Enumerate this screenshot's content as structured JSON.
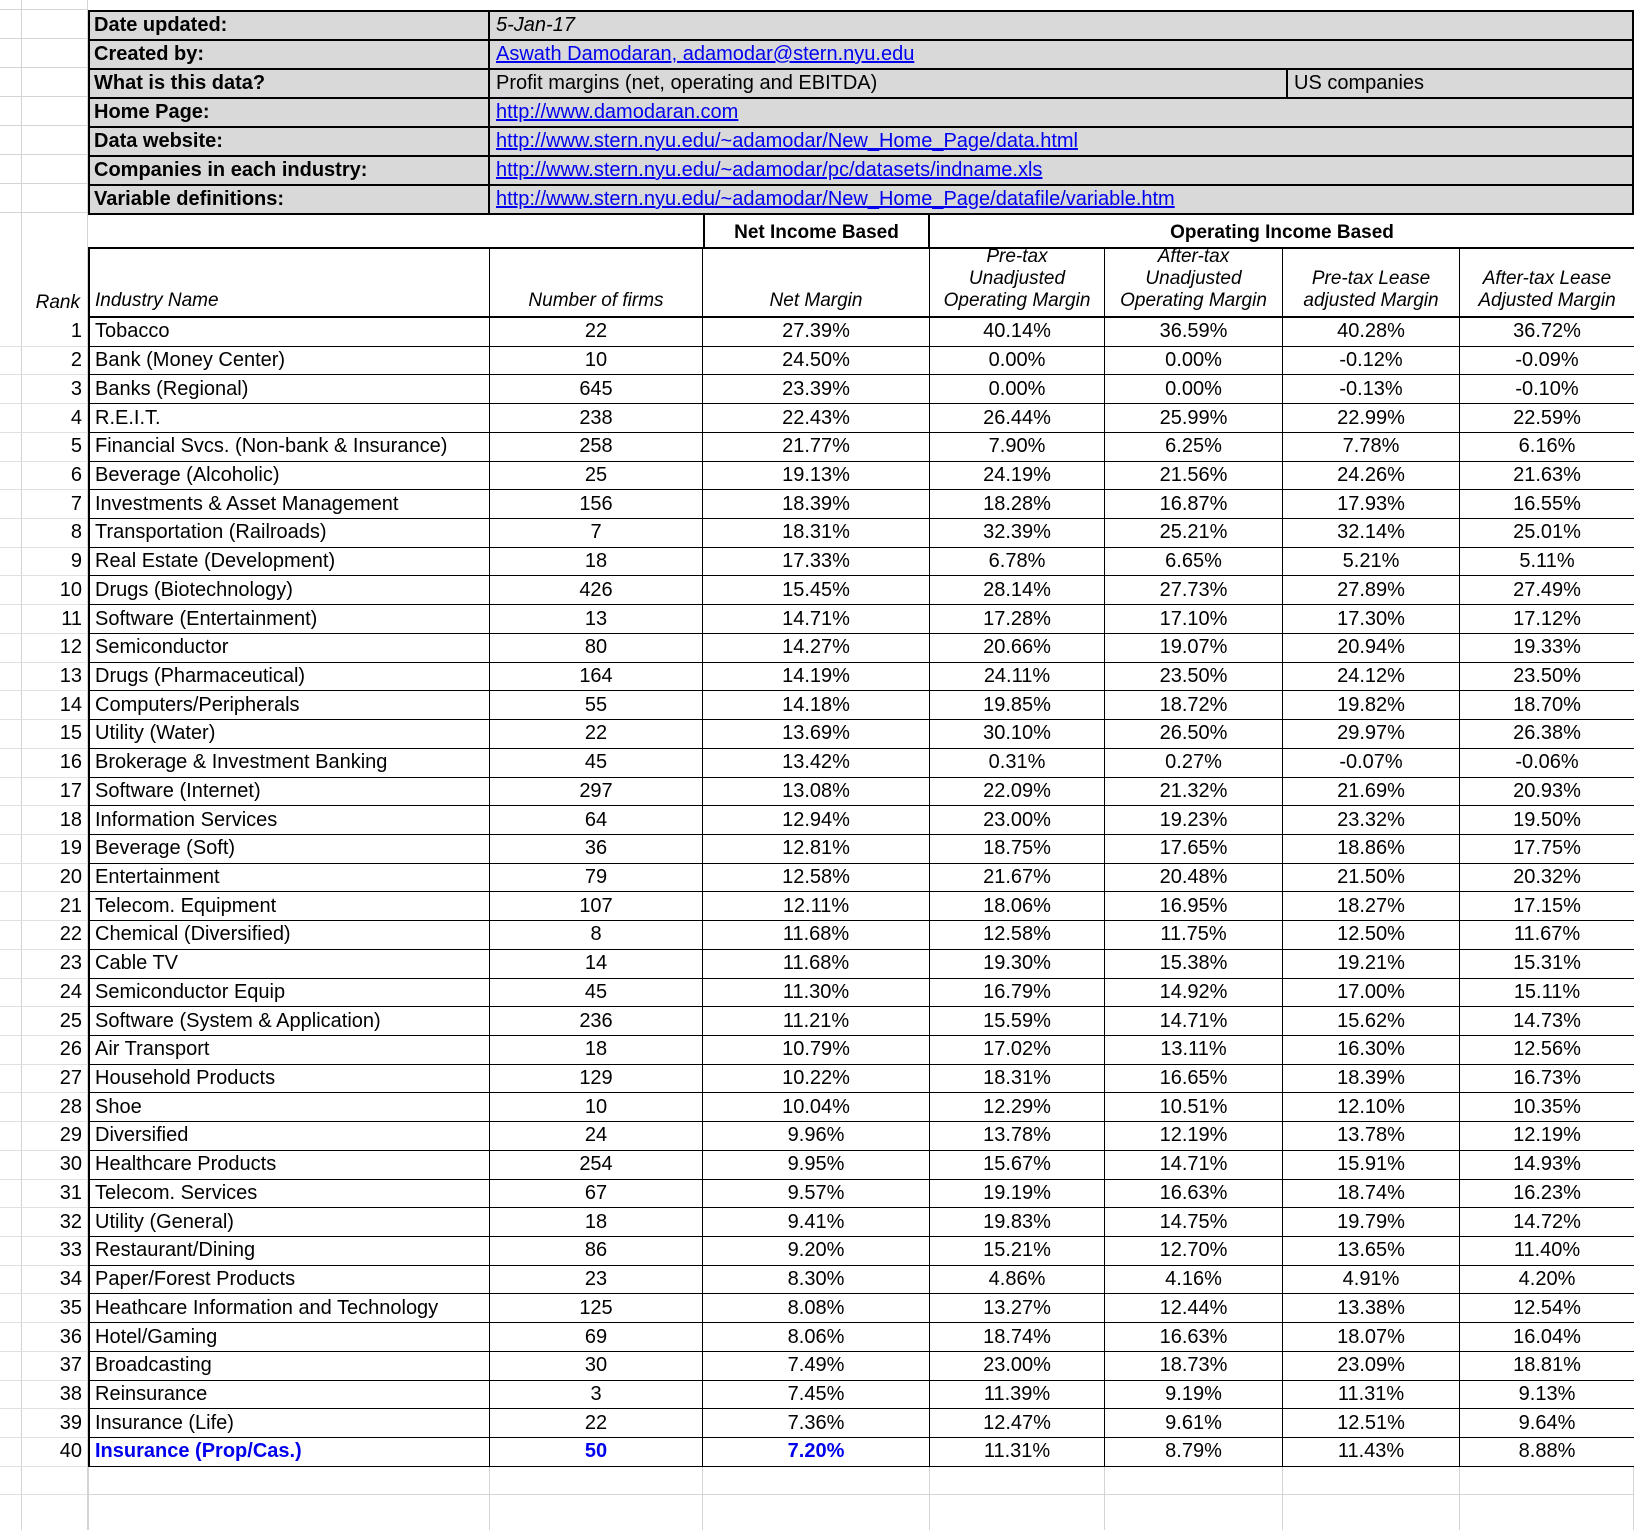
{
  "colors": {
    "header_bg": "#d9d9d9",
    "link_blue": "#0000EE",
    "highlight_blue": "#0000EE",
    "grid_black": "#000000",
    "light_grid": "#d4d4d4"
  },
  "info": {
    "rows": [
      {
        "label": "Date updated:",
        "value": "5-Jan-17"
      },
      {
        "label": "Created by:",
        "value": "Aswath Damodaran, adamodar@stern.nyu.edu"
      },
      {
        "label": "What is this data?",
        "value": "Profit margins (net, operating and EBITDA)",
        "extra": "US companies"
      },
      {
        "label": "Home Page:",
        "value": "http://www.damodaran.com"
      },
      {
        "label": "Data website:",
        "value": "http://www.stern.nyu.edu/~adamodar/New_Home_Page/data.html"
      },
      {
        "label": "Companies in each industry:",
        "value": "http://www.stern.nyu.edu/~adamodar/pc/datasets/indname.xls"
      },
      {
        "label": "Variable definitions:",
        "value": "http://www.stern.nyu.edu/~adamodar/New_Home_Page/datafile/variable.htm"
      }
    ]
  },
  "table": {
    "group_headers": {
      "net": "Net Income Based",
      "operating": "Operating Income Based"
    },
    "columns": {
      "rank": "Rank",
      "industry": "Industry Name",
      "firms": "Number of firms",
      "net_margin": "Net Margin",
      "pretax_unadjusted": [
        "Pre-tax",
        "Unadjusted",
        "Operating Margin"
      ],
      "aftertax_unadjusted": [
        "After-tax",
        "Unadjusted",
        "Operating Margin"
      ],
      "pretax_lease": [
        "Pre-tax Lease",
        "adjusted Margin"
      ],
      "aftertax_lease": [
        "After-tax Lease",
        "Adjusted Margin"
      ]
    },
    "highlighted_rank": "40",
    "rows": [
      [
        "1",
        "Tobacco",
        "22",
        "27.39%",
        "40.14%",
        "36.59%",
        "40.28%",
        "36.72%"
      ],
      [
        "2",
        "Bank (Money Center)",
        "10",
        "24.50%",
        "0.00%",
        "0.00%",
        "-0.12%",
        "-0.09%"
      ],
      [
        "3",
        "Banks (Regional)",
        "645",
        "23.39%",
        "0.00%",
        "0.00%",
        "-0.13%",
        "-0.10%"
      ],
      [
        "4",
        "R.E.I.T.",
        "238",
        "22.43%",
        "26.44%",
        "25.99%",
        "22.99%",
        "22.59%"
      ],
      [
        "5",
        "Financial Svcs. (Non-bank & Insurance)",
        "258",
        "21.77%",
        "7.90%",
        "6.25%",
        "7.78%",
        "6.16%"
      ],
      [
        "6",
        "Beverage (Alcoholic)",
        "25",
        "19.13%",
        "24.19%",
        "21.56%",
        "24.26%",
        "21.63%"
      ],
      [
        "7",
        "Investments & Asset Management",
        "156",
        "18.39%",
        "18.28%",
        "16.87%",
        "17.93%",
        "16.55%"
      ],
      [
        "8",
        "Transportation (Railroads)",
        "7",
        "18.31%",
        "32.39%",
        "25.21%",
        "32.14%",
        "25.01%"
      ],
      [
        "9",
        "Real Estate (Development)",
        "18",
        "17.33%",
        "6.78%",
        "6.65%",
        "5.21%",
        "5.11%"
      ],
      [
        "10",
        "Drugs (Biotechnology)",
        "426",
        "15.45%",
        "28.14%",
        "27.73%",
        "27.89%",
        "27.49%"
      ],
      [
        "11",
        "Software (Entertainment)",
        "13",
        "14.71%",
        "17.28%",
        "17.10%",
        "17.30%",
        "17.12%"
      ],
      [
        "12",
        "Semiconductor",
        "80",
        "14.27%",
        "20.66%",
        "19.07%",
        "20.94%",
        "19.33%"
      ],
      [
        "13",
        "Drugs (Pharmaceutical)",
        "164",
        "14.19%",
        "24.11%",
        "23.50%",
        "24.12%",
        "23.50%"
      ],
      [
        "14",
        "Computers/Peripherals",
        "55",
        "14.18%",
        "19.85%",
        "18.72%",
        "19.82%",
        "18.70%"
      ],
      [
        "15",
        "Utility (Water)",
        "22",
        "13.69%",
        "30.10%",
        "26.50%",
        "29.97%",
        "26.38%"
      ],
      [
        "16",
        "Brokerage & Investment Banking",
        "45",
        "13.42%",
        "0.31%",
        "0.27%",
        "-0.07%",
        "-0.06%"
      ],
      [
        "17",
        "Software (Internet)",
        "297",
        "13.08%",
        "22.09%",
        "21.32%",
        "21.69%",
        "20.93%"
      ],
      [
        "18",
        "Information Services",
        "64",
        "12.94%",
        "23.00%",
        "19.23%",
        "23.32%",
        "19.50%"
      ],
      [
        "19",
        "Beverage (Soft)",
        "36",
        "12.81%",
        "18.75%",
        "17.65%",
        "18.86%",
        "17.75%"
      ],
      [
        "20",
        "Entertainment",
        "79",
        "12.58%",
        "21.67%",
        "20.48%",
        "21.50%",
        "20.32%"
      ],
      [
        "21",
        "Telecom. Equipment",
        "107",
        "12.11%",
        "18.06%",
        "16.95%",
        "18.27%",
        "17.15%"
      ],
      [
        "22",
        "Chemical (Diversified)",
        "8",
        "11.68%",
        "12.58%",
        "11.75%",
        "12.50%",
        "11.67%"
      ],
      [
        "23",
        "Cable TV",
        "14",
        "11.68%",
        "19.30%",
        "15.38%",
        "19.21%",
        "15.31%"
      ],
      [
        "24",
        "Semiconductor Equip",
        "45",
        "11.30%",
        "16.79%",
        "14.92%",
        "17.00%",
        "15.11%"
      ],
      [
        "25",
        "Software (System & Application)",
        "236",
        "11.21%",
        "15.59%",
        "14.71%",
        "15.62%",
        "14.73%"
      ],
      [
        "26",
        "Air Transport",
        "18",
        "10.79%",
        "17.02%",
        "13.11%",
        "16.30%",
        "12.56%"
      ],
      [
        "27",
        "Household Products",
        "129",
        "10.22%",
        "18.31%",
        "16.65%",
        "18.39%",
        "16.73%"
      ],
      [
        "28",
        "Shoe",
        "10",
        "10.04%",
        "12.29%",
        "10.51%",
        "12.10%",
        "10.35%"
      ],
      [
        "29",
        "Diversified",
        "24",
        "9.96%",
        "13.78%",
        "12.19%",
        "13.78%",
        "12.19%"
      ],
      [
        "30",
        "Healthcare Products",
        "254",
        "9.95%",
        "15.67%",
        "14.71%",
        "15.91%",
        "14.93%"
      ],
      [
        "31",
        "Telecom. Services",
        "67",
        "9.57%",
        "19.19%",
        "16.63%",
        "18.74%",
        "16.23%"
      ],
      [
        "32",
        "Utility (General)",
        "18",
        "9.41%",
        "19.83%",
        "14.75%",
        "19.79%",
        "14.72%"
      ],
      [
        "33",
        "Restaurant/Dining",
        "86",
        "9.20%",
        "15.21%",
        "12.70%",
        "13.65%",
        "11.40%"
      ],
      [
        "34",
        "Paper/Forest Products",
        "23",
        "8.30%",
        "4.86%",
        "4.16%",
        "4.91%",
        "4.20%"
      ],
      [
        "35",
        "Heathcare Information and Technology",
        "125",
        "8.08%",
        "13.27%",
        "12.44%",
        "13.38%",
        "12.54%"
      ],
      [
        "36",
        "Hotel/Gaming",
        "69",
        "8.06%",
        "18.74%",
        "16.63%",
        "18.07%",
        "16.04%"
      ],
      [
        "37",
        "Broadcasting",
        "30",
        "7.49%",
        "23.00%",
        "18.73%",
        "23.09%",
        "18.81%"
      ],
      [
        "38",
        "Reinsurance",
        "3",
        "7.45%",
        "11.39%",
        "9.19%",
        "11.31%",
        "9.13%"
      ],
      [
        "39",
        "Insurance (Life)",
        "22",
        "7.36%",
        "12.47%",
        "9.61%",
        "12.51%",
        "9.64%"
      ],
      [
        "40",
        "Insurance (Prop/Cas.)",
        "50",
        "7.20%",
        "11.31%",
        "8.79%",
        "11.43%",
        "8.88%"
      ]
    ]
  }
}
